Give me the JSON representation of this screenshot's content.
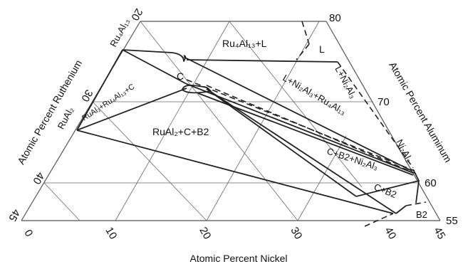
{
  "axes": {
    "ruthenium_title": "Atomic Percent Ruthenium",
    "aluminum_title": "Atomic Percent Aluminum",
    "nickel_title": "Atomic Percent Nickel"
  },
  "ticks": {
    "nickel": [
      "0",
      "10",
      "20",
      "30",
      "40",
      "45"
    ],
    "aluminum": [
      "80",
      "70",
      "60",
      "55"
    ],
    "ruthenium": [
      "20",
      "30",
      "40",
      "45"
    ]
  },
  "phases": {
    "ru4al13": "Ru₄Al₁₃",
    "rual2": "RuAl₂",
    "ni2al3": "Ni₂Al₃",
    "b2": "B2",
    "c": "C",
    "l": "L"
  },
  "regions": {
    "ru4al13_l": "Ru₄Al₁₃+L",
    "l": "L",
    "l_ni2al3": "L+Ni₂Al₃",
    "c_label": "C",
    "l_ni2al3_ru4al13": "L+Ni₂Al₃+Ru₄Al₁₃",
    "rual2_ru4al13_c": "RuAl₂+Ru₄Al₁₃+C",
    "rual2_c_b2": "RuAl₂+C+B2",
    "c_b2_ni2al3": "C+B2+Ni₂Al₃",
    "c_b2": "C+B2",
    "b2": "B2"
  }
}
